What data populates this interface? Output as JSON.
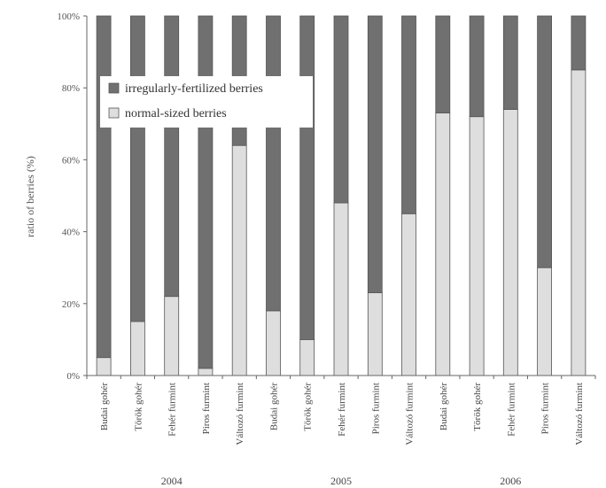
{
  "chart_data": {
    "type": "bar",
    "stacked": true,
    "percent_stacked": true,
    "ylabel": "ratio of berries (%)",
    "ylim": [
      0,
      100
    ],
    "y_ticks": [
      "0%",
      "20%",
      "40%",
      "60%",
      "80%",
      "100%"
    ],
    "grid": false,
    "legend_position": "top-left",
    "categories": [
      "Budai gohér",
      "Török gohér",
      "Fehér furmint",
      "Piros furmint",
      "Változó furmint",
      "Budai gohér",
      "Török gohér",
      "Fehér furmint",
      "Piros furmint",
      "Változó furmint",
      "Budai gohér",
      "Török gohér",
      "Fehér furmint",
      "Piros furmint",
      "Változó furmint"
    ],
    "groups": [
      {
        "label": "2004",
        "start": 0,
        "count": 5
      },
      {
        "label": "2005",
        "start": 5,
        "count": 5
      },
      {
        "label": "2006",
        "start": 10,
        "count": 5
      }
    ],
    "series": [
      {
        "name": "normal-sized berries",
        "color": "#dedede",
        "values": [
          5,
          15,
          22,
          2,
          64,
          18,
          10,
          48,
          23,
          45,
          73,
          72,
          74,
          30,
          85
        ]
      },
      {
        "name": "irregularly-fertilized berries",
        "color": "#707070",
        "values": [
          95,
          85,
          78,
          98,
          36,
          82,
          90,
          52,
          77,
          55,
          27,
          28,
          26,
          70,
          15
        ]
      }
    ],
    "legend": [
      {
        "label": "irregularly-fertilized berries",
        "color": "#707070"
      },
      {
        "label": "normal-sized berries",
        "color": "#dedede"
      }
    ]
  }
}
